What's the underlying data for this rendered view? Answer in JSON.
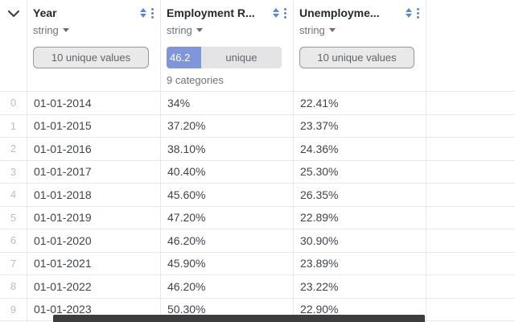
{
  "table": {
    "columns": [
      {
        "name": "Year",
        "type": "string",
        "summary_button": "10 unique values"
      },
      {
        "name": "Employment R...",
        "type": "string",
        "summary_bar": {
          "value": "46.2",
          "label": "unique",
          "fill_pct": 30
        },
        "note": "9 categories"
      },
      {
        "name": "Unemployme...",
        "type": "string",
        "summary_button": "10 unique values"
      }
    ],
    "rows": [
      {
        "index": "0",
        "cells": [
          "01-01-2014",
          "34%",
          "22.41%"
        ]
      },
      {
        "index": "1",
        "cells": [
          "01-01-2015",
          "37.20%",
          "23.37%"
        ]
      },
      {
        "index": "2",
        "cells": [
          "01-01-2016",
          "38.10%",
          "24.36%"
        ]
      },
      {
        "index": "3",
        "cells": [
          "01-01-2017",
          "40.40%",
          "25.30%"
        ]
      },
      {
        "index": "4",
        "cells": [
          "01-01-2018",
          "45.60%",
          "26.35%"
        ]
      },
      {
        "index": "5",
        "cells": [
          "01-01-2019",
          "47.20%",
          "22.89%"
        ]
      },
      {
        "index": "6",
        "cells": [
          "01-01-2020",
          "46.20%",
          "30.90%"
        ]
      },
      {
        "index": "7",
        "cells": [
          "01-01-2021",
          "45.90%",
          "23.89%"
        ]
      },
      {
        "index": "8",
        "cells": [
          "01-01-2022",
          "46.20%",
          "23.22%"
        ]
      },
      {
        "index": "9",
        "cells": [
          "01-01-2023",
          "50.30%",
          "22.90%"
        ]
      }
    ]
  },
  "colors": {
    "accent_blue": "#5b87d9",
    "chip_blue": "#7f97d8",
    "border": "#e7e8ea",
    "scrollbar": "#3d3d3f"
  }
}
